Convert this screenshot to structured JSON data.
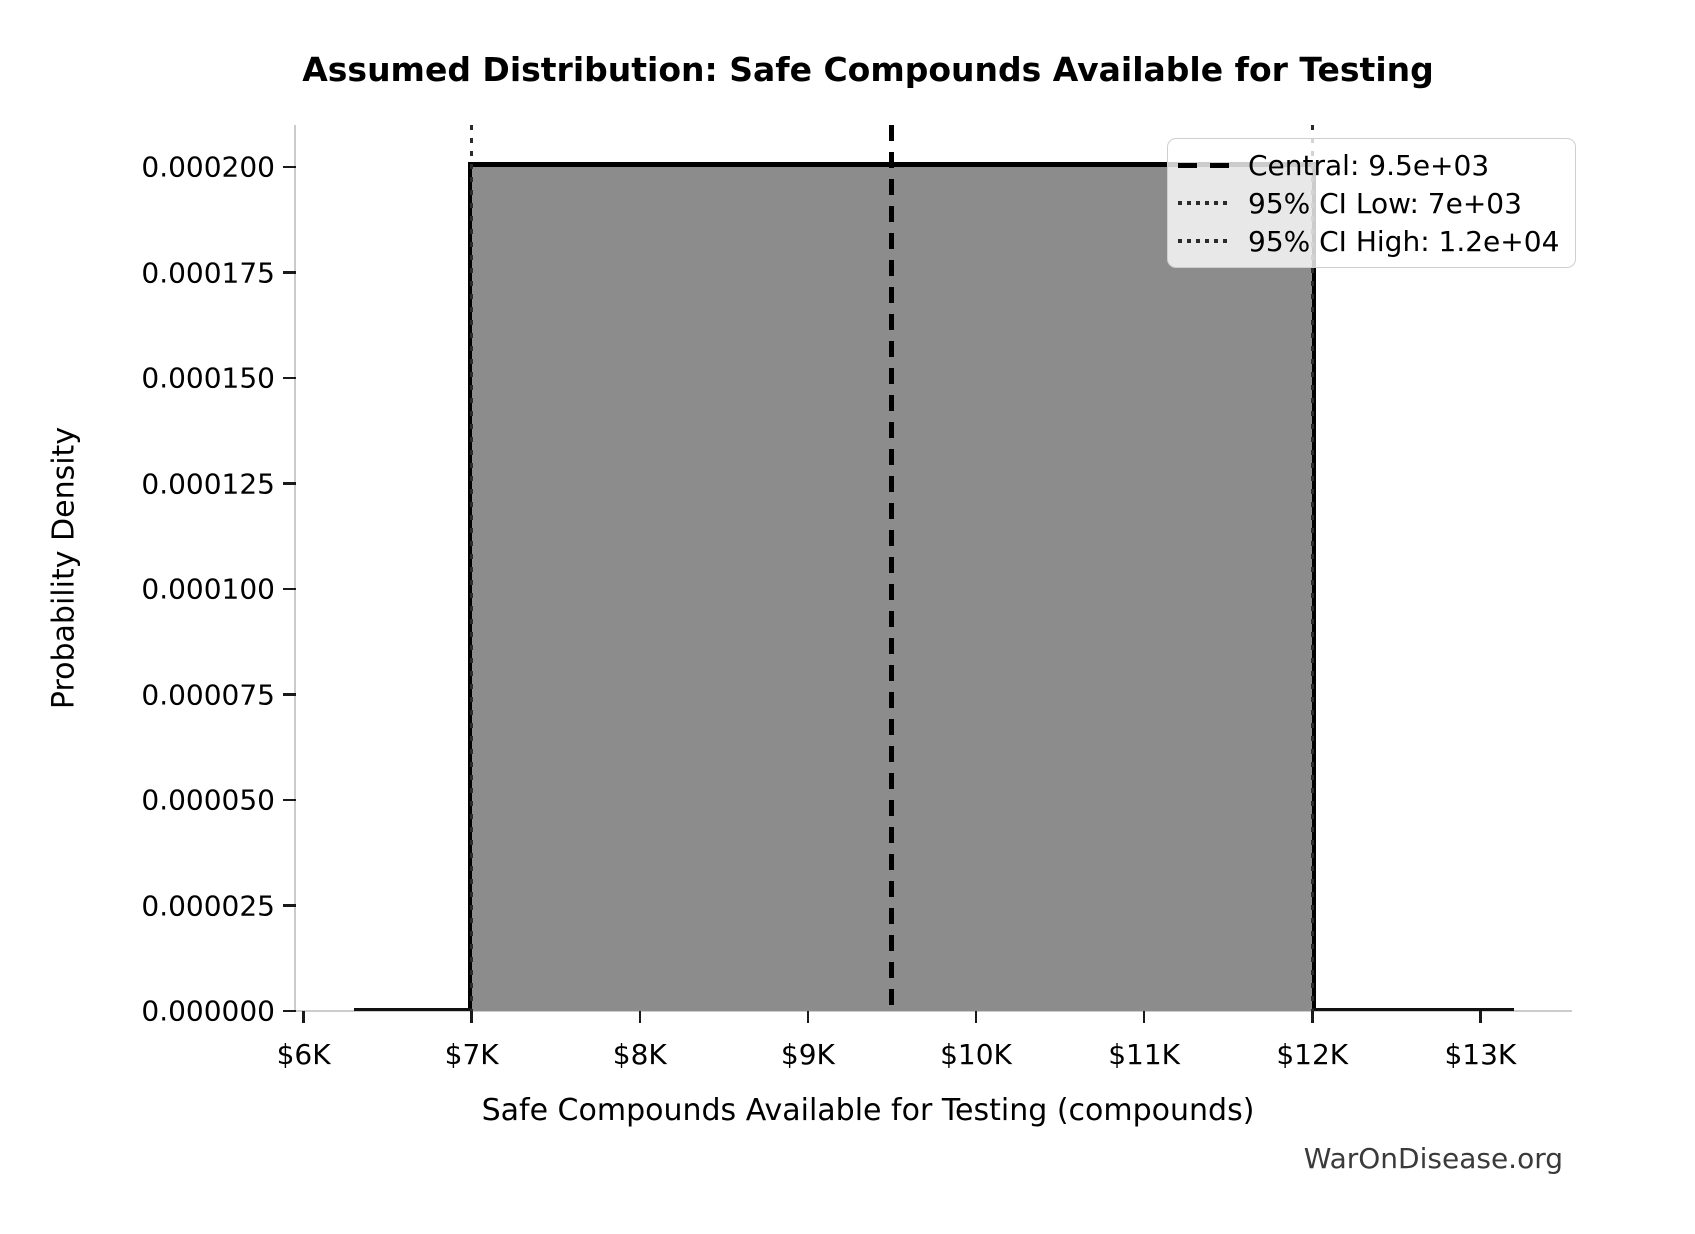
{
  "title": "Assumed Distribution: Safe Compounds Available for Testing",
  "xlabel": "Safe Compounds Available for Testing (compounds)",
  "ylabel": "Probability Density",
  "watermark": "WarOnDisease.org",
  "legend": {
    "position": "upper right",
    "items": [
      {
        "style": "dashed",
        "label": "Central: 9.5e+03"
      },
      {
        "style": "dotted",
        "label": "95% CI Low: 7e+03"
      },
      {
        "style": "dotted",
        "label": "95% CI High: 1.2e+04"
      }
    ]
  },
  "chart_data": {
    "type": "area",
    "distribution": "uniform",
    "title": "Assumed Distribution: Safe Compounds Available for Testing",
    "xlabel": "Safe Compounds Available for Testing (compounds)",
    "ylabel": "Probability Density",
    "uniform_low": 7000,
    "uniform_high": 12000,
    "density": 0.0002,
    "central": 9500,
    "ci_low": 7000,
    "ci_high": 12000,
    "curve_start": 6300,
    "curve_end": 13200,
    "xlim": [
      5955,
      13545
    ],
    "ylim": [
      0,
      0.00021
    ],
    "grid": false,
    "legend_position": "upper right",
    "x_ticks": [
      {
        "value": 6000,
        "label": "$6K"
      },
      {
        "value": 7000,
        "label": "$7K"
      },
      {
        "value": 8000,
        "label": "$8K"
      },
      {
        "value": 9000,
        "label": "$9K"
      },
      {
        "value": 10000,
        "label": "$10K"
      },
      {
        "value": 11000,
        "label": "$11K"
      },
      {
        "value": 12000,
        "label": "$12K"
      },
      {
        "value": 13000,
        "label": "$13K"
      }
    ],
    "y_ticks": [
      {
        "value": 0.0,
        "label": "0.000000"
      },
      {
        "value": 2.5e-05,
        "label": "0.000025"
      },
      {
        "value": 5e-05,
        "label": "0.000050"
      },
      {
        "value": 7.5e-05,
        "label": "0.000075"
      },
      {
        "value": 0.0001,
        "label": "0.000100"
      },
      {
        "value": 0.000125,
        "label": "0.000125"
      },
      {
        "value": 0.00015,
        "label": "0.000150"
      },
      {
        "value": 0.000175,
        "label": "0.000175"
      },
      {
        "value": 0.0002,
        "label": "0.000200"
      }
    ],
    "colors": {
      "fill": "#8c8c8c",
      "line": "#000000",
      "spine": "#cccccc",
      "tick": "#1a1a1a",
      "watermark": "#3a3a3a"
    }
  }
}
